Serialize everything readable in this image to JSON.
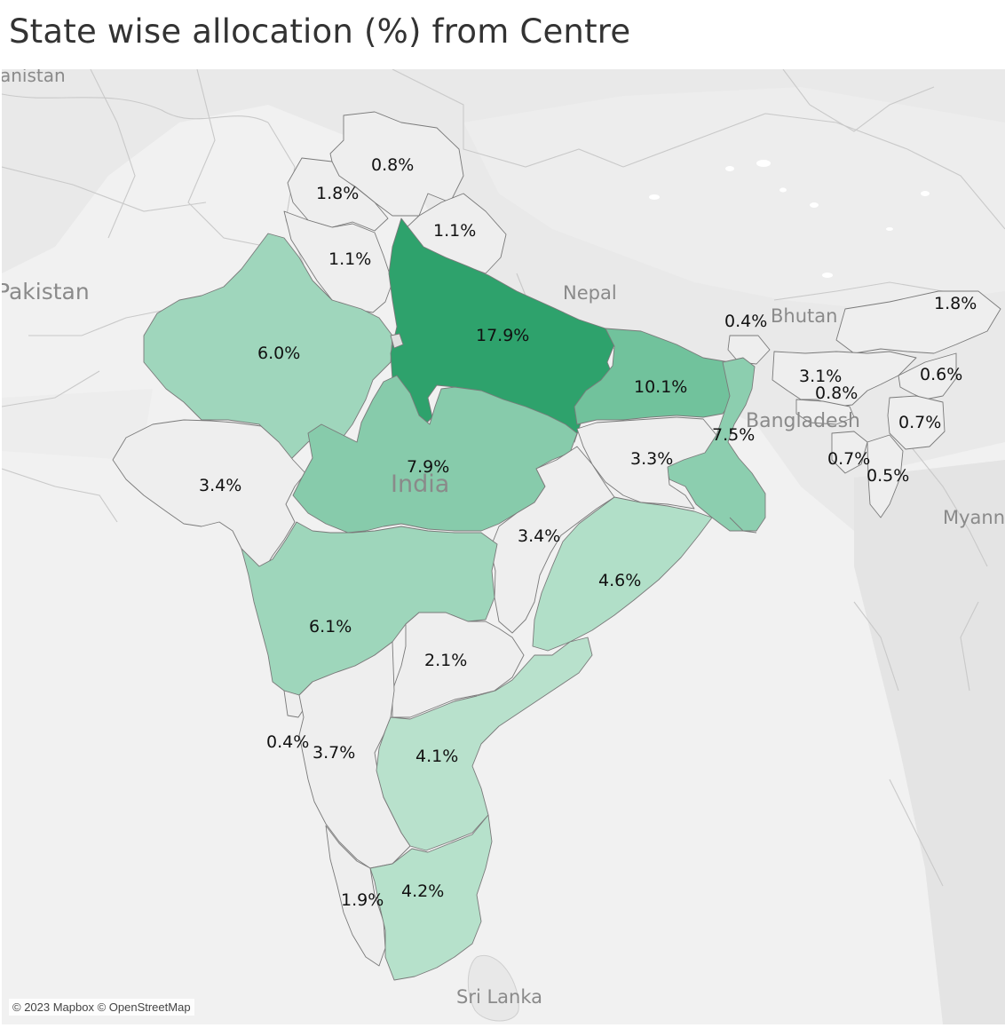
{
  "title": "State wise allocation (%) from Centre",
  "attribution": "© 2023 Mapbox © OpenStreetMap",
  "countries": {
    "pakistan": "Pakistan",
    "afghanistan_partial": "anistan",
    "nepal": "Nepal",
    "bhutan": "Bhutan",
    "bangladesh": "Bangladesh",
    "india": "India",
    "myanmar_partial": "Myann",
    "sri_lanka": "Sri Lanka"
  },
  "color_scale": {
    "low": "#eeeeee",
    "mid": "#7fc8a6",
    "high": "#2ea26c"
  },
  "states": [
    {
      "key": "jk",
      "value": "0.8%",
      "share": 0.8
    },
    {
      "key": "hp",
      "value": "1.8%",
      "share": 1.8
    },
    {
      "key": "uk",
      "value": "1.1%",
      "share": 1.1
    },
    {
      "key": "pb",
      "value": "1.1%",
      "share": 1.1
    },
    {
      "key": "rj",
      "value": "6.0%",
      "share": 6.0
    },
    {
      "key": "up",
      "value": "17.9%",
      "share": 17.9
    },
    {
      "key": "sk",
      "value": "0.4%",
      "share": 0.4
    },
    {
      "key": "ar",
      "value": "1.8%",
      "share": 1.8
    },
    {
      "key": "as",
      "value": "3.1%",
      "share": 3.1
    },
    {
      "key": "ml",
      "value": "0.8%",
      "share": 0.8
    },
    {
      "key": "nl",
      "value": "0.6%",
      "share": 0.6
    },
    {
      "key": "mn",
      "value": "0.7%",
      "share": 0.7
    },
    {
      "key": "tr",
      "value": "0.7%",
      "share": 0.7
    },
    {
      "key": "mz",
      "value": "0.5%",
      "share": 0.5
    },
    {
      "key": "br",
      "value": "10.1%",
      "share": 10.1
    },
    {
      "key": "wb",
      "value": "7.5%",
      "share": 7.5
    },
    {
      "key": "jh",
      "value": "3.3%",
      "share": 3.3
    },
    {
      "key": "gj",
      "value": "3.4%",
      "share": 3.4
    },
    {
      "key": "mp",
      "value": "7.9%",
      "share": 7.9
    },
    {
      "key": "cg",
      "value": "3.4%",
      "share": 3.4
    },
    {
      "key": "od",
      "value": "4.6%",
      "share": 4.6
    },
    {
      "key": "mh",
      "value": "6.1%",
      "share": 6.1
    },
    {
      "key": "tg",
      "value": "2.1%",
      "share": 2.1
    },
    {
      "key": "ga",
      "value": "0.4%",
      "share": 0.4
    },
    {
      "key": "ka",
      "value": "3.7%",
      "share": 3.7
    },
    {
      "key": "ap",
      "value": "4.1%",
      "share": 4.1
    },
    {
      "key": "kl",
      "value": "1.9%",
      "share": 1.9
    },
    {
      "key": "tn",
      "value": "4.2%",
      "share": 4.2
    }
  ]
}
